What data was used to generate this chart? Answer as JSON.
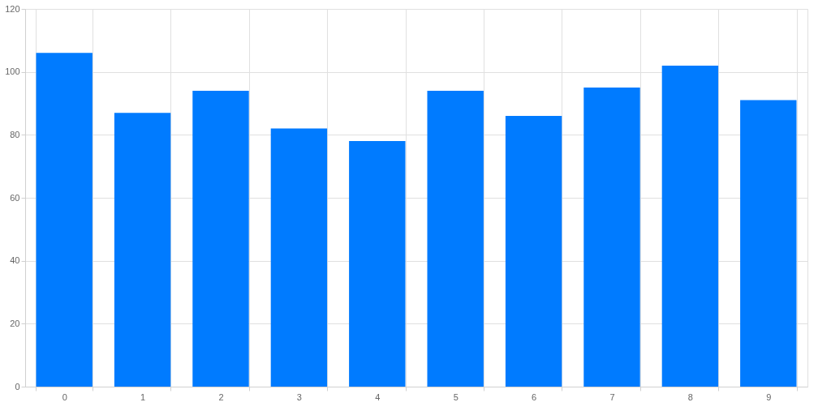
{
  "chart_data": {
    "type": "bar",
    "categories": [
      "0",
      "1",
      "2",
      "3",
      "4",
      "5",
      "6",
      "7",
      "8",
      "9"
    ],
    "values": [
      106,
      87,
      94,
      82,
      78,
      94,
      86,
      95,
      102,
      91
    ],
    "color": "#007bff",
    "ylim": [
      0,
      120
    ],
    "yticks": [
      0,
      20,
      40,
      60,
      80,
      100,
      120
    ],
    "grid": true
  }
}
